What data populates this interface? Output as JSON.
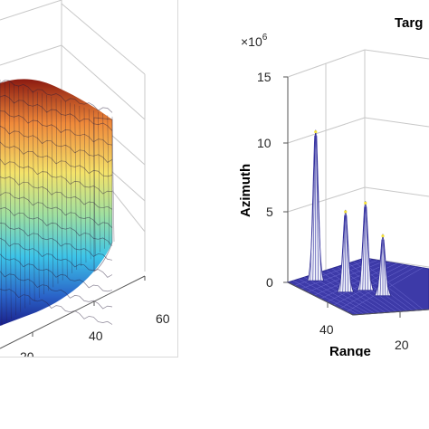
{
  "chart_data": [
    {
      "type": "surface",
      "title": "",
      "xlabel": "",
      "ylabel": "",
      "x_ticks": [
        "20",
        "40",
        "60"
      ],
      "colormap": "jet",
      "grid": true,
      "description_rows": 14
    },
    {
      "type": "surface",
      "title": "Targ",
      "xlabel": "Range",
      "ylabel": "Azimuth",
      "z_exponent": "×10^6",
      "zlim": [
        0,
        15
      ],
      "z_ticks": [
        "0",
        "5",
        "10",
        "15"
      ],
      "x_ticks": [
        "40",
        "20"
      ],
      "grid": true,
      "peaks": [
        {
          "range": 45,
          "height": 11.0
        },
        {
          "range": 33,
          "height": 6.0
        },
        {
          "range": 25,
          "height": 6.5
        },
        {
          "range": 18,
          "height": 4.5
        }
      ],
      "colormap": "parula"
    }
  ]
}
